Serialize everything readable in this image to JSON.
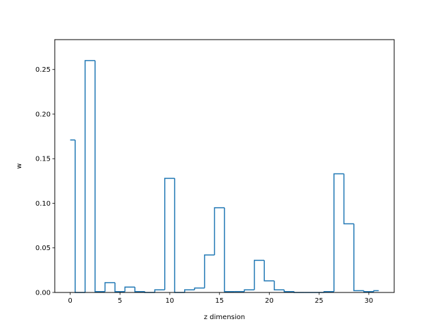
{
  "chart_data": {
    "type": "step",
    "title": "",
    "xlabel": "z dimension",
    "ylabel": "w",
    "x": [
      0,
      1,
      2,
      3,
      4,
      5,
      6,
      7,
      8,
      9,
      10,
      11,
      12,
      13,
      14,
      15,
      16,
      17,
      18,
      19,
      20,
      21,
      22,
      23,
      24,
      25,
      26,
      27,
      28,
      29,
      30,
      31
    ],
    "values": [
      0.171,
      0.0,
      0.26,
      0.001,
      0.011,
      0.001,
      0.006,
      0.001,
      0.0,
      0.003,
      0.128,
      0.0,
      0.003,
      0.005,
      0.042,
      0.095,
      0.001,
      0.001,
      0.003,
      0.036,
      0.013,
      0.003,
      0.001,
      0.0,
      0.0,
      0.0,
      0.001,
      0.133,
      0.077,
      0.002,
      0.001,
      0.002
    ],
    "step_where": "mid",
    "xlim": [
      -1.55,
      32.55
    ],
    "ylim": [
      0,
      0.2835
    ],
    "xticks": [
      0,
      5,
      10,
      15,
      20,
      25,
      30
    ],
    "xtick_labels": [
      "0",
      "5",
      "10",
      "15",
      "20",
      "25",
      "30"
    ],
    "yticks": [
      0.0,
      0.05,
      0.1,
      0.15,
      0.2,
      0.25
    ],
    "ytick_labels": [
      "0.00",
      "0.05",
      "0.10",
      "0.15",
      "0.20",
      "0.25"
    ],
    "grid": false,
    "line_color": "#1f77b4"
  }
}
